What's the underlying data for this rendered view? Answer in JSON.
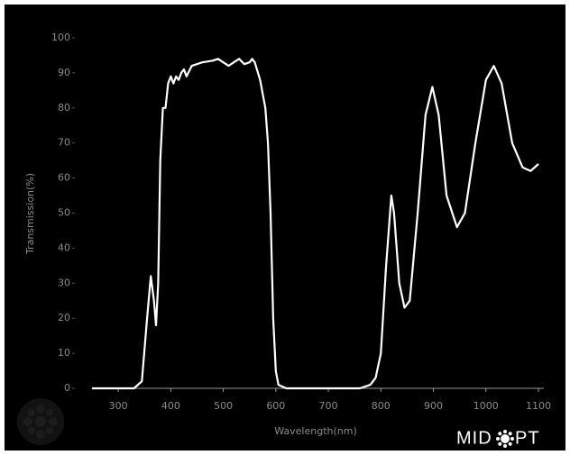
{
  "chart_data": {
    "type": "line",
    "xlabel": "Wavelength(nm)",
    "ylabel": "Transmission(%)",
    "logo_left": "MID",
    "logo_right": "PT",
    "x": [
      250,
      300,
      330,
      345,
      355,
      362,
      368,
      372,
      376,
      380,
      385,
      390,
      395,
      400,
      405,
      410,
      415,
      420,
      425,
      430,
      440,
      460,
      480,
      490,
      500,
      510,
      520,
      530,
      540,
      550,
      555,
      560,
      570,
      580,
      585,
      590,
      595,
      600,
      605,
      620,
      700,
      760,
      780,
      790,
      800,
      810,
      820,
      825,
      835,
      845,
      855,
      870,
      885,
      898,
      910,
      925,
      945,
      960,
      980,
      1000,
      1015,
      1030,
      1050,
      1070,
      1085,
      1100
    ],
    "values": [
      0,
      0,
      0,
      2,
      20,
      32,
      25,
      18,
      30,
      65,
      80,
      80,
      87,
      89,
      87,
      89,
      88,
      90,
      91,
      89,
      92,
      93,
      93.5,
      94,
      93,
      92,
      93,
      94,
      92.5,
      93,
      94,
      93,
      88,
      80,
      70,
      50,
      20,
      5,
      1,
      0,
      0,
      0,
      1,
      3,
      10,
      35,
      55,
      50,
      30,
      23,
      25,
      50,
      78,
      86,
      78,
      55,
      46,
      50,
      70,
      88,
      92,
      87,
      70,
      63,
      62,
      64
    ],
    "color": "#ffffff",
    "xlim": [
      250,
      1100
    ],
    "xticks": [
      300,
      400,
      500,
      600,
      700,
      800,
      900,
      1000,
      1100
    ],
    "ylim": [
      0,
      100
    ],
    "yticks": [
      0,
      10,
      20,
      30,
      40,
      50,
      60,
      70,
      80,
      90,
      100
    ]
  }
}
